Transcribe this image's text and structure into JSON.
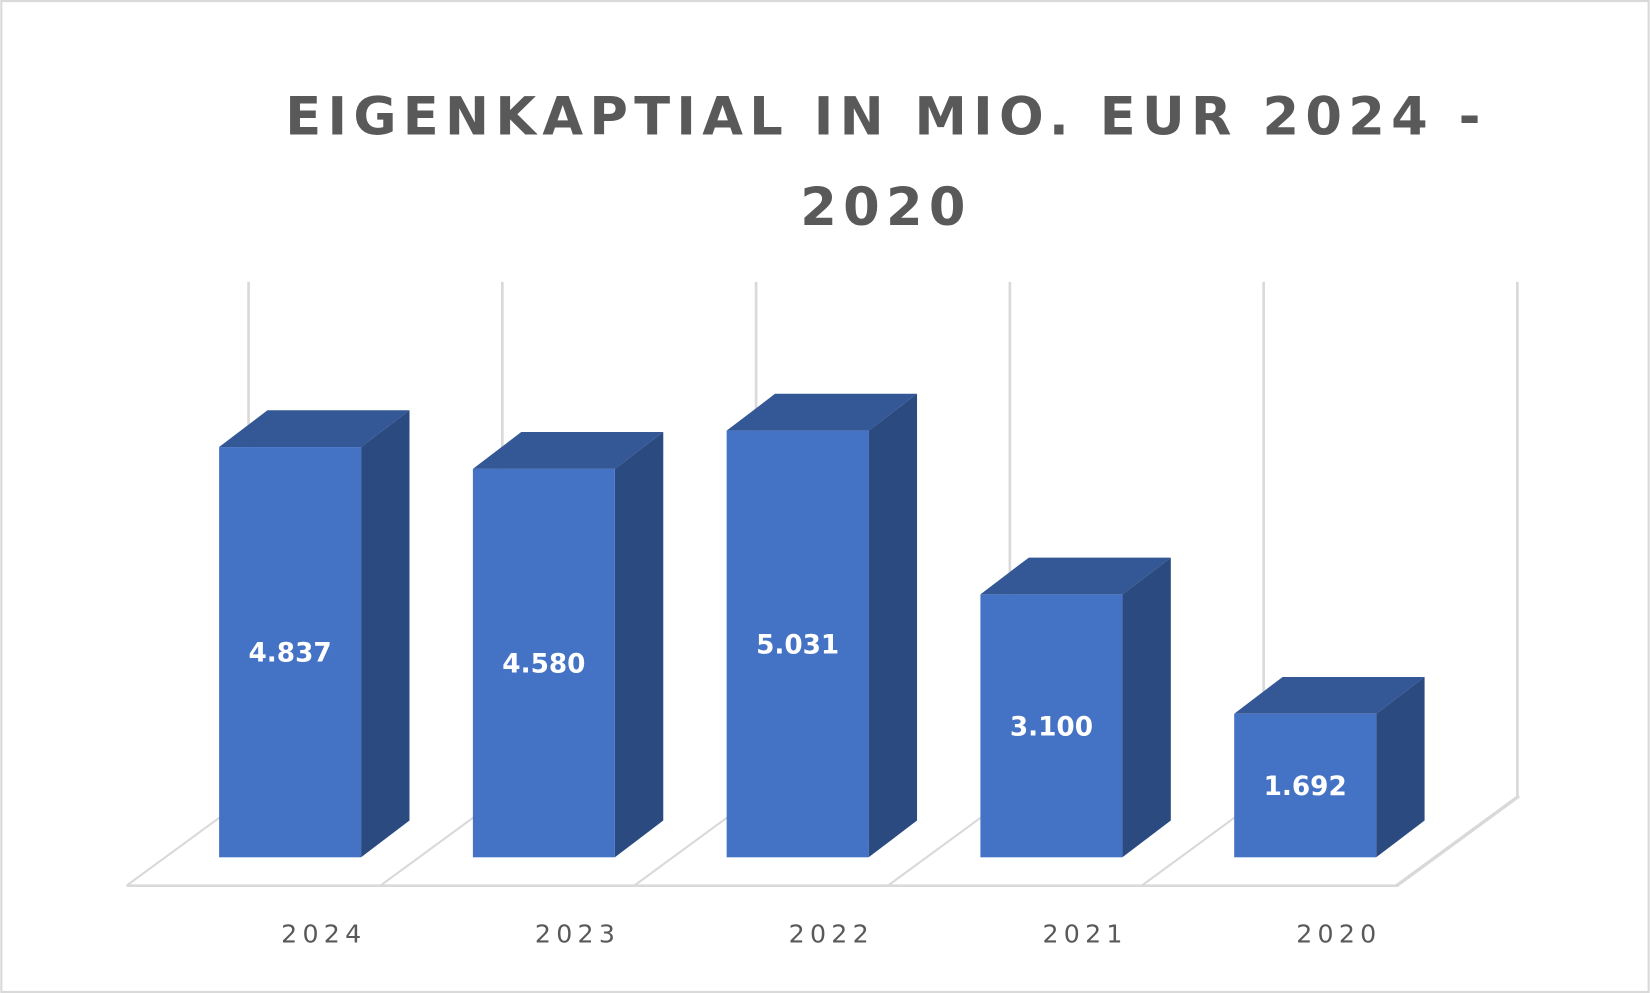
{
  "chart_data": {
    "type": "bar",
    "style": "3d-column",
    "title_lines": [
      "EIGENKAPTIAL IN MIO. EUR 2024 -",
      "2020"
    ],
    "categories": [
      "2024",
      "2023",
      "2022",
      "2021",
      "2020"
    ],
    "values": [
      4837,
      4580,
      5031,
      3100,
      1692
    ],
    "value_labels": [
      "4.837",
      "4.580",
      "5.031",
      "3.100",
      "1.692"
    ],
    "xlabel": "",
    "ylabel": "",
    "ylim": [
      0,
      6000
    ],
    "grid": "vertical",
    "legend": "none",
    "colors": {
      "front": "#4472C4",
      "top": "#345896",
      "side": "#2B4A80",
      "grid": "#D9D9D9",
      "text": "#595959"
    }
  }
}
